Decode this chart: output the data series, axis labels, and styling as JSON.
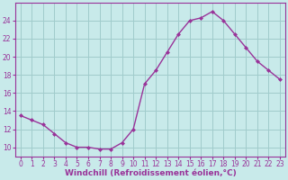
{
  "x": [
    0,
    1,
    2,
    3,
    4,
    5,
    6,
    7,
    8,
    9,
    10,
    11,
    12,
    13,
    14,
    15,
    16,
    17,
    18,
    19,
    20,
    21,
    22,
    23
  ],
  "y": [
    13.5,
    13.0,
    12.5,
    11.5,
    10.5,
    10.0,
    10.0,
    9.8,
    9.8,
    10.5,
    12.0,
    17.0,
    18.5,
    20.5,
    22.5,
    24.0,
    24.3,
    25.0,
    24.0,
    22.5,
    21.0,
    19.5,
    18.5,
    17.5
  ],
  "line_color": "#993399",
  "marker": "D",
  "marker_size": 2,
  "bg_color": "#c8eaea",
  "grid_color": "#a0cccc",
  "xlabel": "Windchill (Refroidissement éolien,°C)",
  "xlabel_color": "#993399",
  "tick_color": "#993399",
  "spine_color": "#993399",
  "ylim": [
    9,
    26
  ],
  "yticks": [
    10,
    12,
    14,
    16,
    18,
    20,
    22,
    24
  ],
  "xlim": [
    -0.5,
    23.5
  ],
  "tick_fontsize": 5.5,
  "xlabel_fontsize": 6.5,
  "linewidth": 1.0
}
